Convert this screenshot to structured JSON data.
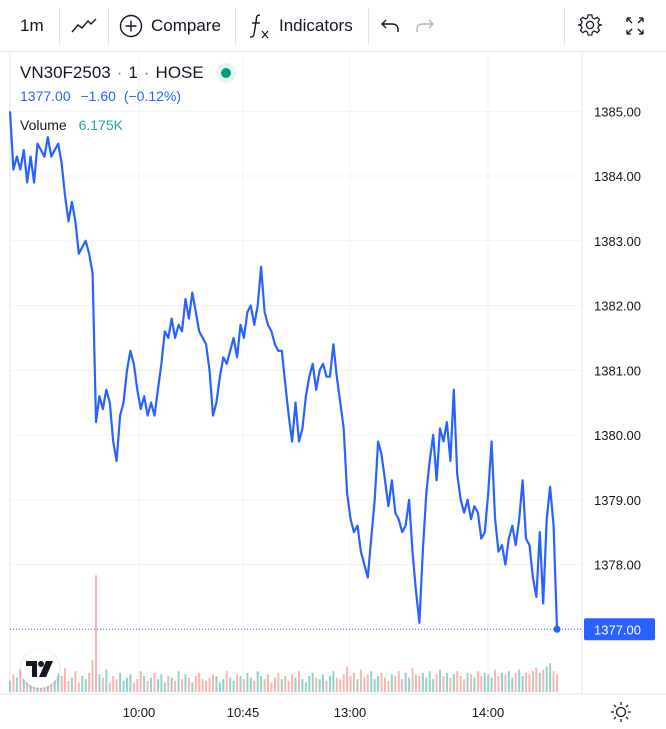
{
  "toolbar": {
    "interval": "1m",
    "chart_type_icon": "line-chart-icon",
    "compare_label": "Compare",
    "indicators_label": "Indicators",
    "undo_icon": "undo-icon",
    "redo_icon": "redo-icon",
    "settings_icon": "gear-icon",
    "fullscreen_icon": "fullscreen-icon"
  },
  "legend": {
    "symbol": "VN30F2503",
    "interval": "1",
    "exchange": "HOSE",
    "separator": "·",
    "market_status_color": "#089981",
    "last": "1377.00",
    "change": "−1.60",
    "change_pct": "(−0.12%)",
    "volume_label": "Volume",
    "volume_value": "6.175K"
  },
  "colors": {
    "line": "#2962ff",
    "volume_up": "#8fd3c9",
    "volume_down": "#f7b6b1",
    "last_price_label_bg": "#2962ff"
  },
  "chart_data": {
    "type": "line",
    "series": [
      {
        "values": [
          1385.0,
          1384.1,
          1384.3,
          1384.1,
          1384.4,
          1383.9,
          1384.3,
          1383.9,
          1384.5,
          1384.4,
          1384.3,
          1384.6,
          1384.3,
          1384.4,
          1384.5,
          1384.2,
          1383.7,
          1383.3,
          1383.6,
          1383.3,
          1382.8,
          1382.9,
          1383.0,
          1382.8,
          1382.5,
          1380.2,
          1380.6,
          1380.4,
          1380.7,
          1380.5,
          1379.9,
          1379.6,
          1380.3,
          1380.5,
          1381.0,
          1381.3,
          1381.1,
          1380.7,
          1380.4,
          1380.6,
          1380.3,
          1380.5,
          1380.3,
          1380.7,
          1381.1,
          1381.6,
          1381.5,
          1381.8,
          1381.5,
          1381.7,
          1381.6,
          1382.1,
          1381.8,
          1382.2,
          1381.9,
          1381.6,
          1381.5,
          1381.4,
          1381.0,
          1380.3,
          1380.5,
          1380.9,
          1381.2,
          1381.1,
          1381.3,
          1381.5,
          1381.2,
          1381.7,
          1381.5,
          1381.9,
          1382.0,
          1381.7,
          1382.0,
          1382.6,
          1381.9,
          1381.7,
          1381.6,
          1381.4,
          1381.3,
          1381.3,
          1380.8,
          1380.3,
          1379.9,
          1380.5,
          1379.9,
          1380.1,
          1380.6,
          1380.9,
          1381.1,
          1380.7,
          1381.0,
          1381.1,
          1380.9,
          1380.9,
          1381.4,
          1380.9,
          1380.5,
          1380.1,
          1379.1,
          1378.7,
          1378.5,
          1378.6,
          1378.2,
          1378.0,
          1377.8,
          1378.4,
          1379.0,
          1379.9,
          1379.7,
          1379.3,
          1378.9,
          1379.3,
          1378.8,
          1378.7,
          1378.5,
          1378.6,
          1379.0,
          1378.2,
          1377.6,
          1377.1,
          1378.2,
          1379.1,
          1379.6,
          1380.0,
          1379.3,
          1380.1,
          1379.9,
          1380.2,
          1379.6,
          1380.7,
          1379.4,
          1379.0,
          1378.8,
          1379.0,
          1378.7,
          1378.9,
          1378.8,
          1378.4,
          1378.5,
          1379.1,
          1379.9,
          1378.7,
          1378.2,
          1378.3,
          1378.0,
          1378.4,
          1378.6,
          1378.3,
          1378.7,
          1379.3,
          1378.4,
          1378.3,
          1377.8,
          1377.5,
          1378.5,
          1377.4,
          1378.7,
          1379.2,
          1378.6,
          1377.0
        ]
      }
    ],
    "volumes": [
      7,
      11,
      9,
      14,
      8,
      12,
      6,
      10,
      13,
      7,
      16,
      9,
      11,
      8,
      12,
      10,
      15,
      7,
      9,
      13,
      6,
      10,
      8,
      12,
      20,
      73,
      11,
      9,
      14,
      6,
      10,
      8,
      12,
      7,
      9,
      11,
      6,
      8,
      13,
      10,
      7,
      9,
      12,
      8,
      11,
      6,
      10,
      9,
      7,
      13,
      8,
      11,
      9,
      6,
      10,
      12,
      8,
      7,
      9,
      11,
      10,
      6,
      8,
      13,
      9,
      7,
      11,
      10,
      8,
      12,
      9,
      7,
      13,
      10,
      8,
      11,
      6,
      9,
      12,
      8,
      10,
      7,
      11,
      9,
      13,
      8,
      6,
      10,
      12,
      9,
      8,
      11,
      7,
      10,
      13,
      9,
      8,
      11,
      16,
      10,
      12,
      8,
      14,
      9,
      11,
      13,
      8,
      10,
      12,
      9,
      7,
      11,
      10,
      13,
      8,
      12,
      9,
      15,
      11,
      10,
      12,
      9,
      13,
      8,
      11,
      14,
      10,
      12,
      9,
      11,
      13,
      10,
      8,
      12,
      11,
      9,
      13,
      10,
      12,
      11,
      9,
      14,
      10,
      12,
      11,
      13,
      9,
      12,
      14,
      10,
      12,
      11,
      13,
      15,
      12,
      14,
      16,
      18,
      13,
      11
    ],
    "x_ticks": [
      "10:00",
      "10:45",
      "13:00",
      "14:00"
    ],
    "y_ticks": [
      "1385.00",
      "1384.00",
      "1383.00",
      "1382.00",
      "1381.00",
      "1380.00",
      "1379.00",
      "1378.00"
    ],
    "ylim": [
      1376.0,
      1385.9
    ],
    "last_value_label": "1377.00",
    "grid": true
  }
}
